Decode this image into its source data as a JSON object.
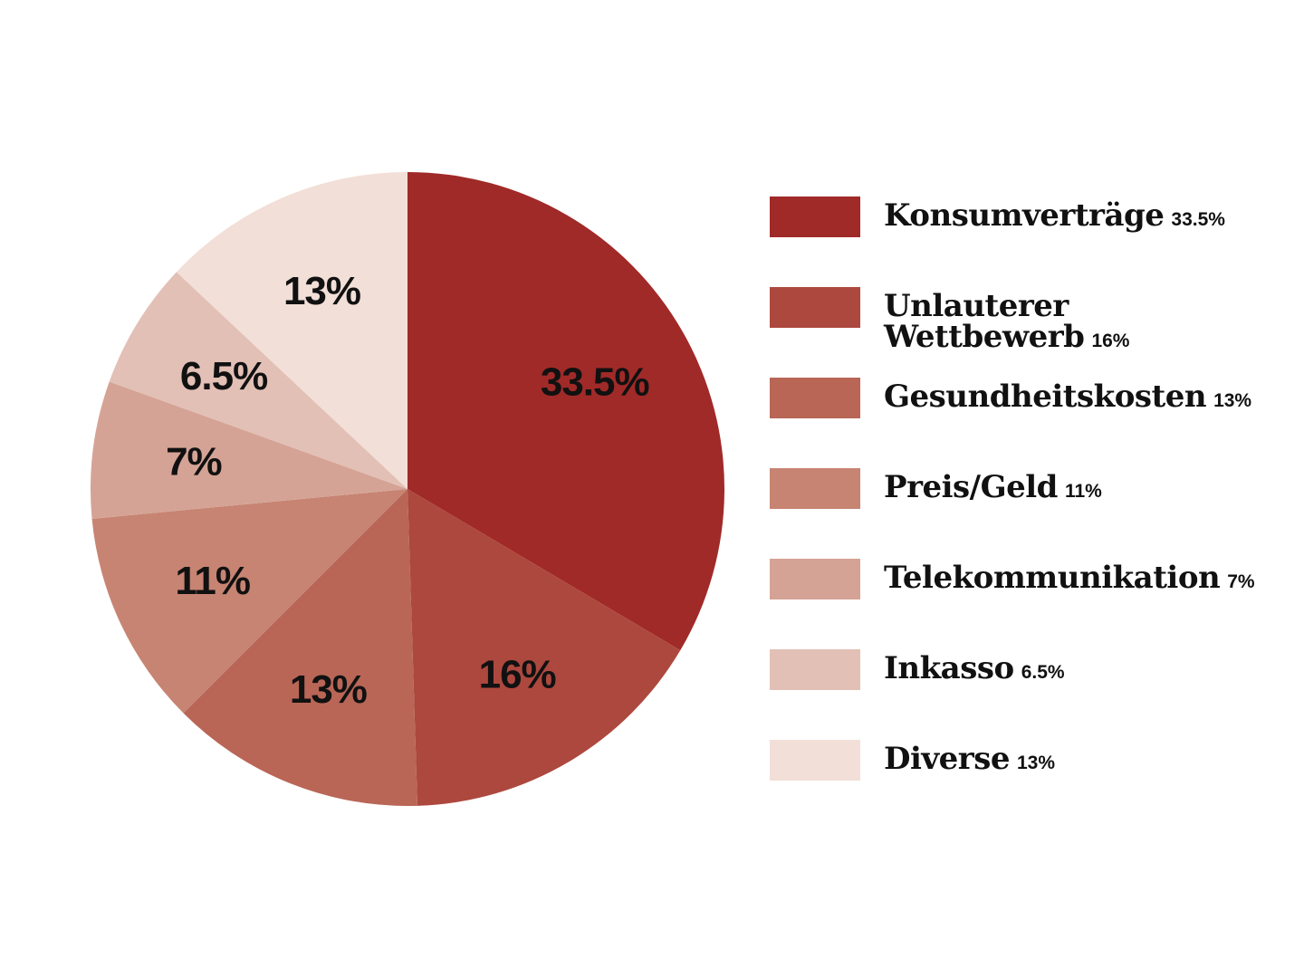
{
  "chart_data": {
    "type": "pie",
    "title": "",
    "start_angle_deg": 0,
    "direction": "clockwise",
    "slices": [
      {
        "label": "Konsumverträge",
        "value": 33.5,
        "display": "33.5%",
        "legend_value": "33.5%",
        "color": "#a02a28"
      },
      {
        "label": "Unlauterer Wettbewerb",
        "value": 16,
        "display": "16%",
        "legend_value": "16%",
        "color": "#ad483e"
      },
      {
        "label": "Gesundheitskosten",
        "value": 13,
        "display": "13%",
        "legend_value": "13%",
        "color": "#b96657"
      },
      {
        "label": "Preis/Geld",
        "value": 11,
        "display": "11%",
        "legend_value": "11%",
        "color": "#c78472"
      },
      {
        "label": "Telekommunikation",
        "value": 7,
        "display": "7%",
        "legend_value": "7%",
        "color": "#d5a395"
      },
      {
        "label": "Inkasso",
        "value": 6.5,
        "display": "6.5%",
        "legend_value": "6.5%",
        "color": "#e2c0b6"
      },
      {
        "label": "Diverse",
        "value": 13,
        "display": "13%",
        "legend_value": "13%",
        "color": "#f2dfd7"
      }
    ],
    "legend_placement": "right"
  }
}
